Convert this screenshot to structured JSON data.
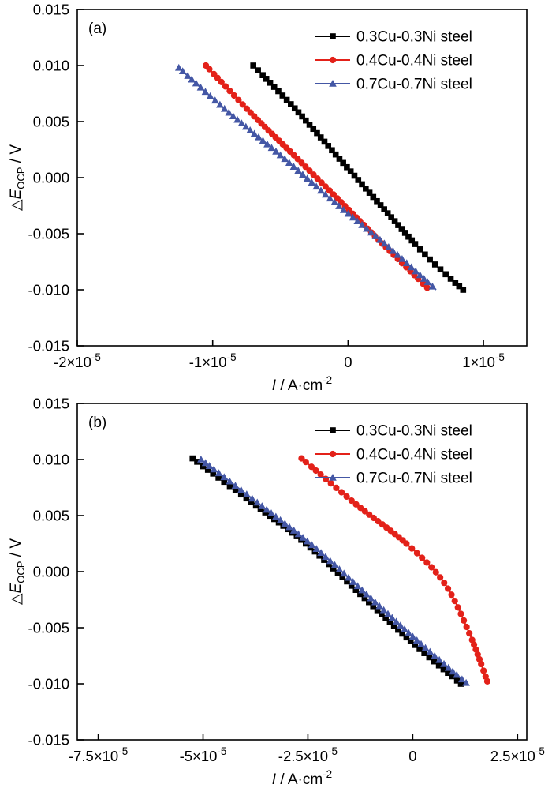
{
  "page": {
    "background": "#ffffff"
  },
  "colors": {
    "black_series": "#000000",
    "red_series": "#e32119",
    "blue_series": "#4457a5"
  },
  "chart_data": [
    {
      "type": "line",
      "panel_label": "(a)",
      "xlabel": {
        "italic": "I",
        "rest": " / A·cm",
        "sup": "-2"
      },
      "ylabel": {
        "pre": "△",
        "italic": "E",
        "sub": "OCP",
        "rest": " / V"
      },
      "xlim": [
        -2e-05,
        1.32e-05
      ],
      "ylim": [
        -0.015,
        0.015
      ],
      "grid": false,
      "legend_position": "top-right",
      "xticks": [
        {
          "v": -2e-05,
          "label": "-2×10",
          "sup": "-5"
        },
        {
          "v": -1e-05,
          "label": "-1×10",
          "sup": "-5"
        },
        {
          "v": 0,
          "label": "0"
        },
        {
          "v": 1e-05,
          "label": "1×10",
          "sup": "-5"
        }
      ],
      "yticks": [
        {
          "v": 0.015,
          "label": "0.015"
        },
        {
          "v": 0.01,
          "label": "0.010"
        },
        {
          "v": 0.005,
          "label": "0.005"
        },
        {
          "v": 0.0,
          "label": "0.000"
        },
        {
          "v": -0.005,
          "label": "-0.005"
        },
        {
          "v": -0.01,
          "label": "-0.010"
        },
        {
          "v": -0.015,
          "label": "-0.015"
        }
      ],
      "series": [
        {
          "name": "0.3Cu-0.3Ni steel",
          "color": "#000000",
          "marker": "square",
          "points": [
            [
              -7e-06,
              0.01
            ],
            [
              -3.8e-06,
              0.006
            ],
            [
              -5e-07,
              0.0015
            ],
            [
              2.8e-06,
              -0.003
            ],
            [
              5.8e-06,
              -0.007
            ],
            [
              8.5e-06,
              -0.01
            ]
          ]
        },
        {
          "name": "0.4Cu-0.4Ni steel",
          "color": "#e32119",
          "marker": "circle",
          "points": [
            [
              -1.05e-05,
              0.01
            ],
            [
              -7.2e-06,
              0.0058
            ],
            [
              -4e-06,
              0.002
            ],
            [
              -5e-07,
              -0.0022
            ],
            [
              2.8e-06,
              -0.0062
            ],
            [
              6e-06,
              -0.01
            ]
          ]
        },
        {
          "name": "0.7Cu-0.7Ni steel",
          "color": "#4457a5",
          "marker": "triangle",
          "points": [
            [
              -1.25e-05,
              0.0098
            ],
            [
              -8.8e-06,
              0.0058
            ],
            [
              -5e-06,
              0.002
            ],
            [
              -1e-06,
              -0.0022
            ],
            [
              3e-06,
              -0.0062
            ],
            [
              6.5e-06,
              -0.01
            ]
          ]
        }
      ]
    },
    {
      "type": "line",
      "panel_label": "(b)",
      "xlabel": {
        "italic": "I",
        "rest": " / A·cm",
        "sup": "-2"
      },
      "ylabel": {
        "pre": "△",
        "italic": "E",
        "sub": "OCP",
        "rest": " / V"
      },
      "xlim": [
        -8e-05,
        2.72e-05
      ],
      "ylim": [
        -0.015,
        0.015
      ],
      "grid": false,
      "legend_position": "top-right",
      "xticks": [
        {
          "v": -7.5e-05,
          "label": "-7.5×10",
          "sup": "-5"
        },
        {
          "v": -5e-05,
          "label": "-5×10",
          "sup": "-5"
        },
        {
          "v": -2.5e-05,
          "label": "-2.5×10",
          "sup": "-5"
        },
        {
          "v": 0,
          "label": "0"
        },
        {
          "v": 2.5e-05,
          "label": "2.5×10",
          "sup": "-5"
        }
      ],
      "yticks": [
        {
          "v": 0.015,
          "label": "0.015"
        },
        {
          "v": 0.01,
          "label": "0.010"
        },
        {
          "v": 0.005,
          "label": "0.005"
        },
        {
          "v": 0.0,
          "label": "0.000"
        },
        {
          "v": -0.005,
          "label": "-0.005"
        },
        {
          "v": -0.01,
          "label": "-0.010"
        },
        {
          "v": -0.015,
          "label": "-0.015"
        }
      ],
      "series": [
        {
          "name": "0.3Cu-0.3Ni steel",
          "color": "#000000",
          "marker": "square",
          "points": [
            [
              -5.25e-05,
              0.0101
            ],
            [
              -3.85e-05,
              0.0062
            ],
            [
              -2.55e-05,
              0.0025
            ],
            [
              -1.25e-05,
              -0.002
            ],
            [
              -5e-07,
              -0.0062
            ],
            [
              1.15e-05,
              -0.01
            ]
          ]
        },
        {
          "name": "0.4Cu-0.4Ni steel",
          "color": "#e32119",
          "marker": "circle",
          "points": [
            [
              -2.65e-05,
              0.0101
            ],
            [
              -1.35e-05,
              0.006
            ],
            [
              -1.5e-06,
              0.0025
            ],
            [
              7.5e-06,
              -0.001
            ],
            [
              1.35e-05,
              -0.0055
            ],
            [
              1.8e-05,
              -0.01
            ]
          ]
        },
        {
          "name": "0.7Cu-0.7Ni steel",
          "color": "#4457a5",
          "marker": "triangle",
          "points": [
            [
              -5.05e-05,
              0.01
            ],
            [
              -3.65e-05,
              0.006
            ],
            [
              -2.35e-05,
              0.0022
            ],
            [
              -1.05e-05,
              -0.0022
            ],
            [
              1.5e-06,
              -0.0063
            ],
            [
              1.3e-05,
              -0.01
            ]
          ]
        }
      ]
    }
  ]
}
